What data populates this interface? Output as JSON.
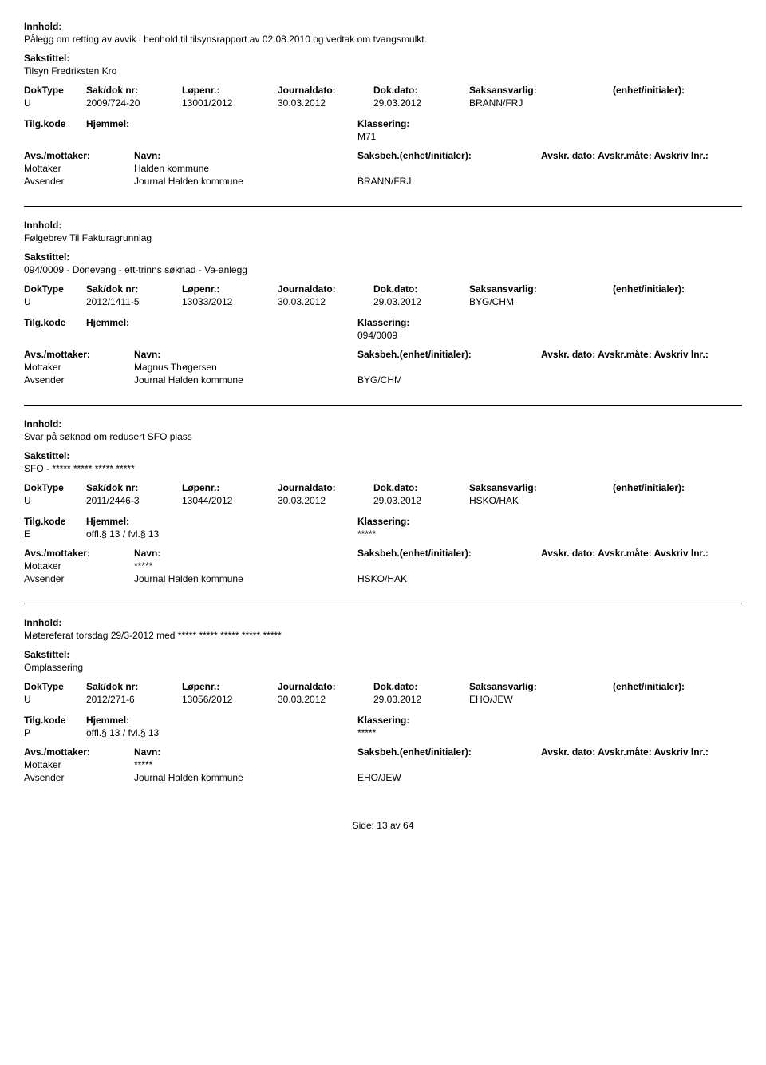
{
  "labels": {
    "innhold": "Innhold:",
    "sakstittel": "Sakstittel:",
    "doktype": "DokType",
    "sakdok": "Sak/dok nr:",
    "lopenr": "Løpenr.:",
    "journaldato": "Journaldato:",
    "dokdato": "Dok.dato:",
    "saksansvarlig": "Saksansvarlig:",
    "enhet": "(enhet/initialer):",
    "tilgkode": "Tilg.kode",
    "hjemmel": "Hjemmel:",
    "klassering": "Klassering:",
    "avsmottaker": "Avs./mottaker:",
    "navn": "Navn:",
    "saksbeh": "Saksbeh.(enhet/initialer):",
    "avskr": "Avskr. dato:  Avskr.måte:  Avskriv lnr.:",
    "mottaker": "Mottaker",
    "avsender": "Avsender"
  },
  "records": [
    {
      "innhold": "Pålegg om retting av avvik i henhold til tilsynsrapport av 02.08.2010 og vedtak om tvangsmulkt.",
      "sakstittel": "Tilsyn Fredriksten Kro",
      "doktype": "U",
      "sakdok": "2009/724-20",
      "lopenr": "13001/2012",
      "journaldato": "30.03.2012",
      "dokdato": "29.03.2012",
      "saksansvarlig": "BRANN/FRJ",
      "enhet": "",
      "tilgkode": "",
      "hjemmel": "",
      "klassering": "M71",
      "mottaker_navn": "Halden kommune",
      "avsender_navn": "Journal Halden kommune",
      "saksbeh_val": "BRANN/FRJ"
    },
    {
      "innhold": "Følgebrev Til Fakturagrunnlag",
      "sakstittel": "094/0009 - Donevang - ett-trinns søknad - Va-anlegg",
      "doktype": "U",
      "sakdok": "2012/1411-5",
      "lopenr": "13033/2012",
      "journaldato": "30.03.2012",
      "dokdato": "29.03.2012",
      "saksansvarlig": "BYG/CHM",
      "enhet": "",
      "tilgkode": "",
      "hjemmel": "",
      "klassering": "094/0009",
      "mottaker_navn": "Magnus Thøgersen",
      "avsender_navn": "Journal Halden kommune",
      "saksbeh_val": "BYG/CHM"
    },
    {
      "innhold": "Svar på søknad om redusert SFO plass",
      "sakstittel": "SFO - ***** ***** ***** *****",
      "doktype": "U",
      "sakdok": "2011/2446-3",
      "lopenr": "13044/2012",
      "journaldato": "30.03.2012",
      "dokdato": "29.03.2012",
      "saksansvarlig": "HSKO/HAK",
      "enhet": "",
      "tilgkode": "E",
      "hjemmel": "offl.§ 13 / fvl.§ 13",
      "klassering": "*****",
      "mottaker_navn": "*****",
      "avsender_navn": "Journal Halden kommune",
      "saksbeh_val": "HSKO/HAK"
    },
    {
      "innhold": "Møtereferat torsdag 29/3-2012 med ***** *****  ***** ***** *****",
      "sakstittel": "Omplassering",
      "doktype": "U",
      "sakdok": "2012/271-6",
      "lopenr": "13056/2012",
      "journaldato": "30.03.2012",
      "dokdato": "29.03.2012",
      "saksansvarlig": "EHO/JEW",
      "enhet": "",
      "tilgkode": "P",
      "hjemmel": "offl.§ 13 / fvl.§ 13",
      "klassering": "*****",
      "mottaker_navn": "*****",
      "avsender_navn": "Journal Halden kommune",
      "saksbeh_val": "EHO/JEW"
    }
  ],
  "footer": {
    "side_label": "Side:",
    "page": "13",
    "av": "av",
    "total": "64"
  }
}
